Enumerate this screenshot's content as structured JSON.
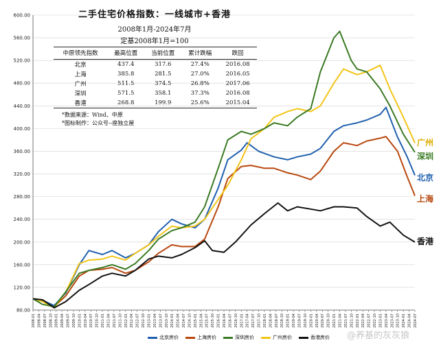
{
  "title": {
    "main": "二手住宅价格指数：一线城市+香港",
    "period": "2008年1月-2024年7月",
    "base": "定基2008年1月=100"
  },
  "table": {
    "headers": [
      "中原领先指数",
      "最高位置",
      "当前位置",
      "累计跌幅",
      "跌回"
    ],
    "rows": [
      [
        "北京",
        "437.4",
        "317.6",
        "27.4%",
        "2016.08"
      ],
      [
        "上海",
        "385.8",
        "281.5",
        "27.0%",
        "2016.05"
      ],
      [
        "广州",
        "511.5",
        "374.5",
        "26.8%",
        "2017.06"
      ],
      [
        "深圳",
        "571.5",
        "358.1",
        "37.3%",
        "2016.08"
      ],
      [
        "香港",
        "268.8",
        "199.9",
        "25.6%",
        "2015.04"
      ]
    ]
  },
  "notes": {
    "source": "*数据来源：Wind、中原",
    "author": "*图标制作：公众号--座独立屋"
  },
  "end_labels": {
    "guangzhou": "广州",
    "shenzhen": "深圳",
    "beijing": "北京",
    "shanghai": "上海",
    "hongkong": "香港"
  },
  "watermark": "@养基的灰灰狼",
  "colors": {
    "beijing": "#1f5fae",
    "shanghai": "#b8470e",
    "shenzhen": "#3a7a22",
    "guangzhou": "#f2c418",
    "hongkong": "#111111",
    "grid": "#d0d0d0",
    "axis": "#555555"
  },
  "chart_data": {
    "type": "line",
    "ylim": [
      80,
      600
    ],
    "yticks": [
      "80.00",
      "120.00",
      "160.00",
      "200.00",
      "240.00",
      "280.00",
      "320.00",
      "360.00",
      "400.00",
      "440.00",
      "480.00",
      "520.00",
      "560.00",
      "600.00"
    ],
    "x_start": "2008-01",
    "x_end": "2024-07",
    "x_tick_labels": [
      "2008-01",
      "2008-04",
      "2008-07",
      "2008-10",
      "2009-01",
      "2009-04",
      "2009-07",
      "2009-10",
      "2010-01",
      "2010-04",
      "2010-07",
      "2010-10",
      "2011-01",
      "2011-04",
      "2011-07",
      "2011-10",
      "2012-01",
      "2012-04",
      "2012-07",
      "2012-10",
      "2013-01",
      "2013-04",
      "2013-07",
      "2013-10",
      "2014-01",
      "2014-04",
      "2014-07",
      "2014-10",
      "2015-01",
      "2015-04",
      "2015-07",
      "2015-10",
      "2016-01",
      "2016-04",
      "2016-07",
      "2016-10",
      "2017-01",
      "2017-04",
      "2017-07",
      "2017-10",
      "2018-01",
      "2018-04",
      "2018-07",
      "2018-10",
      "2019-01",
      "2019-04",
      "2019-07",
      "2019-10",
      "2020-01",
      "2020-04",
      "2020-07",
      "2020-10",
      "2021-01",
      "2021-04",
      "2021-07",
      "2021-10",
      "2022-01",
      "2022-04",
      "2022-07",
      "2022-10",
      "2023-01",
      "2023-04",
      "2023-07",
      "2023-10",
      "2024-01",
      "2024-04",
      "2024-07"
    ],
    "legend": [
      "北京房价",
      "上海房价",
      "深圳房价",
      "广州房价",
      "香港房价"
    ],
    "grid": "horizontal",
    "series": [
      {
        "key": "beijing",
        "name": "北京房价",
        "points": [
          [
            "2008-01",
            100
          ],
          [
            "2008-06",
            97
          ],
          [
            "2008-12",
            88
          ],
          [
            "2009-06",
            110
          ],
          [
            "2010-01",
            160
          ],
          [
            "2010-06",
            185
          ],
          [
            "2011-01",
            178
          ],
          [
            "2011-06",
            185
          ],
          [
            "2012-01",
            172
          ],
          [
            "2012-06",
            180
          ],
          [
            "2013-01",
            195
          ],
          [
            "2013-06",
            218
          ],
          [
            "2014-01",
            240
          ],
          [
            "2014-06",
            232
          ],
          [
            "2015-01",
            225
          ],
          [
            "2015-06",
            240
          ],
          [
            "2016-01",
            295
          ],
          [
            "2016-06",
            345
          ],
          [
            "2017-01",
            362
          ],
          [
            "2017-04",
            375
          ],
          [
            "2017-10",
            360
          ],
          [
            "2018-06",
            350
          ],
          [
            "2019-01",
            345
          ],
          [
            "2019-06",
            350
          ],
          [
            "2020-01",
            355
          ],
          [
            "2020-06",
            365
          ],
          [
            "2021-01",
            395
          ],
          [
            "2021-06",
            405
          ],
          [
            "2022-01",
            410
          ],
          [
            "2022-06",
            415
          ],
          [
            "2023-01",
            425
          ],
          [
            "2023-04",
            437.4
          ],
          [
            "2023-10",
            385
          ],
          [
            "2024-03",
            350
          ],
          [
            "2024-07",
            317.6
          ]
        ]
      },
      {
        "key": "shanghai",
        "name": "上海房价",
        "points": [
          [
            "2008-01",
            100
          ],
          [
            "2008-06",
            98
          ],
          [
            "2008-12",
            86
          ],
          [
            "2009-06",
            105
          ],
          [
            "2010-01",
            140
          ],
          [
            "2010-06",
            150
          ],
          [
            "2011-01",
            152
          ],
          [
            "2011-06",
            155
          ],
          [
            "2012-01",
            145
          ],
          [
            "2012-06",
            150
          ],
          [
            "2013-01",
            165
          ],
          [
            "2013-06",
            180
          ],
          [
            "2014-01",
            195
          ],
          [
            "2014-06",
            192
          ],
          [
            "2015-01",
            192
          ],
          [
            "2015-06",
            205
          ],
          [
            "2016-01",
            262
          ],
          [
            "2016-06",
            312
          ],
          [
            "2017-01",
            333
          ],
          [
            "2017-06",
            335
          ],
          [
            "2018-01",
            330
          ],
          [
            "2018-06",
            330
          ],
          [
            "2019-01",
            322
          ],
          [
            "2019-06",
            318
          ],
          [
            "2020-01",
            310
          ],
          [
            "2020-06",
            325
          ],
          [
            "2021-01",
            360
          ],
          [
            "2021-06",
            375
          ],
          [
            "2022-01",
            370
          ],
          [
            "2022-06",
            378
          ],
          [
            "2023-01",
            383
          ],
          [
            "2023-04",
            385.8
          ],
          [
            "2023-10",
            360
          ],
          [
            "2024-03",
            315
          ],
          [
            "2024-07",
            281.5
          ]
        ]
      },
      {
        "key": "shenzhen",
        "name": "深圳房价",
        "points": [
          [
            "2008-01",
            100
          ],
          [
            "2008-06",
            90
          ],
          [
            "2008-12",
            86
          ],
          [
            "2009-06",
            112
          ],
          [
            "2010-01",
            145
          ],
          [
            "2010-06",
            150
          ],
          [
            "2011-01",
            155
          ],
          [
            "2011-06",
            160
          ],
          [
            "2012-01",
            152
          ],
          [
            "2012-06",
            162
          ],
          [
            "2013-01",
            185
          ],
          [
            "2013-06",
            205
          ],
          [
            "2014-01",
            220
          ],
          [
            "2014-06",
            225
          ],
          [
            "2015-01",
            235
          ],
          [
            "2015-06",
            262
          ],
          [
            "2016-01",
            330
          ],
          [
            "2016-06",
            380
          ],
          [
            "2017-01",
            395
          ],
          [
            "2017-06",
            390
          ],
          [
            "2018-01",
            400
          ],
          [
            "2018-06",
            410
          ],
          [
            "2019-01",
            405
          ],
          [
            "2019-06",
            420
          ],
          [
            "2020-01",
            435
          ],
          [
            "2020-06",
            500
          ],
          [
            "2021-01",
            560
          ],
          [
            "2021-04",
            571.5
          ],
          [
            "2021-10",
            520
          ],
          [
            "2022-01",
            505
          ],
          [
            "2022-06",
            500
          ],
          [
            "2023-01",
            470
          ],
          [
            "2023-06",
            440
          ],
          [
            "2024-01",
            390
          ],
          [
            "2024-07",
            358.1
          ]
        ]
      },
      {
        "key": "guangzhou",
        "name": "广州房价",
        "points": [
          [
            "2008-01",
            100
          ],
          [
            "2008-06",
            95
          ],
          [
            "2008-12",
            84
          ],
          [
            "2009-06",
            112
          ],
          [
            "2010-01",
            162
          ],
          [
            "2010-06",
            168
          ],
          [
            "2011-01",
            170
          ],
          [
            "2011-06",
            175
          ],
          [
            "2012-01",
            168
          ],
          [
            "2012-06",
            180
          ],
          [
            "2013-01",
            195
          ],
          [
            "2013-06",
            210
          ],
          [
            "2014-01",
            228
          ],
          [
            "2014-06",
            225
          ],
          [
            "2015-01",
            228
          ],
          [
            "2015-06",
            240
          ],
          [
            "2016-01",
            275
          ],
          [
            "2016-06",
            300
          ],
          [
            "2017-01",
            345
          ],
          [
            "2017-06",
            382
          ],
          [
            "2018-01",
            400
          ],
          [
            "2018-06",
            420
          ],
          [
            "2019-01",
            430
          ],
          [
            "2019-06",
            435
          ],
          [
            "2020-01",
            430
          ],
          [
            "2020-06",
            440
          ],
          [
            "2021-01",
            480
          ],
          [
            "2021-06",
            505
          ],
          [
            "2022-01",
            495
          ],
          [
            "2022-06",
            500
          ],
          [
            "2023-01",
            511.5
          ],
          [
            "2023-06",
            470
          ],
          [
            "2024-01",
            420
          ],
          [
            "2024-07",
            374.5
          ]
        ]
      },
      {
        "key": "hongkong",
        "name": "香港房价",
        "points": [
          [
            "2008-01",
            100
          ],
          [
            "2008-06",
            98
          ],
          [
            "2008-12",
            84
          ],
          [
            "2009-06",
            95
          ],
          [
            "2010-01",
            115
          ],
          [
            "2010-06",
            125
          ],
          [
            "2011-01",
            140
          ],
          [
            "2011-06",
            145
          ],
          [
            "2012-01",
            140
          ],
          [
            "2012-06",
            150
          ],
          [
            "2013-01",
            170
          ],
          [
            "2013-06",
            175
          ],
          [
            "2014-01",
            172
          ],
          [
            "2014-06",
            178
          ],
          [
            "2015-01",
            190
          ],
          [
            "2015-06",
            202
          ],
          [
            "2015-10",
            185
          ],
          [
            "2016-04",
            182
          ],
          [
            "2016-10",
            200
          ],
          [
            "2017-06",
            230
          ],
          [
            "2018-01",
            250
          ],
          [
            "2018-08",
            268.8
          ],
          [
            "2019-01",
            255
          ],
          [
            "2019-06",
            262
          ],
          [
            "2020-01",
            258
          ],
          [
            "2020-06",
            255
          ],
          [
            "2021-01",
            262
          ],
          [
            "2021-06",
            262
          ],
          [
            "2022-01",
            260
          ],
          [
            "2022-06",
            245
          ],
          [
            "2023-01",
            228
          ],
          [
            "2023-06",
            235
          ],
          [
            "2024-01",
            212
          ],
          [
            "2024-07",
            199.9
          ]
        ]
      }
    ]
  }
}
